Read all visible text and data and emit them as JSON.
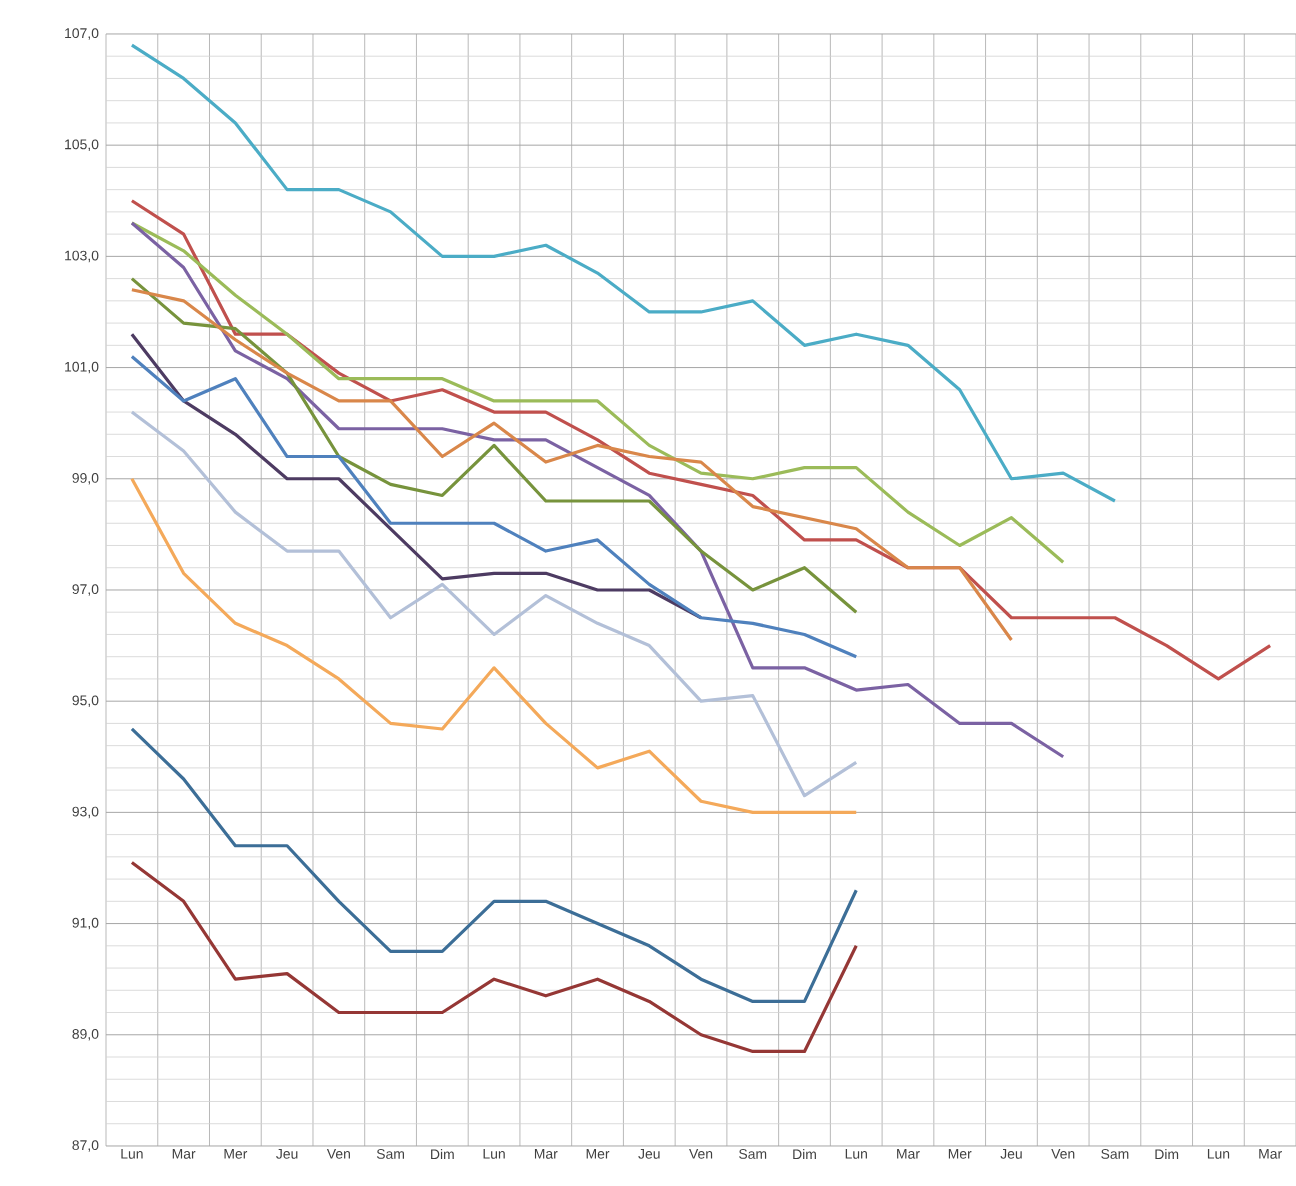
{
  "chart_data": {
    "type": "line",
    "categories": [
      "Lun",
      "Mar",
      "Mer",
      "Jeu",
      "Ven",
      "Sam",
      "Dim",
      "Lun",
      "Mar",
      "Mer",
      "Jeu",
      "Ven",
      "Sam",
      "Dim",
      "Lun",
      "Mar",
      "Mer",
      "Jeu",
      "Ven",
      "Sam",
      "Dim",
      "Lun",
      "Mar"
    ],
    "ylim": [
      87,
      107
    ],
    "yticks": [
      {
        "value": 87,
        "label": "87,0"
      },
      {
        "value": 89,
        "label": "89,0"
      },
      {
        "value": 91,
        "label": "91,0"
      },
      {
        "value": 93,
        "label": "93,0"
      },
      {
        "value": 95,
        "label": "95,0"
      },
      {
        "value": 97,
        "label": "97,0"
      },
      {
        "value": 99,
        "label": "99,0"
      },
      {
        "value": 101,
        "label": "101,0"
      },
      {
        "value": 103,
        "label": "103,0"
      },
      {
        "value": 105,
        "label": "105,0"
      },
      {
        "value": 107,
        "label": "107,0"
      }
    ],
    "grid": true,
    "marker": "none",
    "line_style": "solid",
    "series": [
      {
        "color": "#4bacc6",
        "values": [
          106.8,
          106.2,
          105.4,
          104.2,
          104.2,
          103.8,
          103.0,
          103.0,
          103.2,
          102.7,
          102.0,
          102.0,
          102.2,
          101.4,
          101.6,
          101.4,
          100.6,
          99.0,
          99.1,
          98.6,
          null,
          null,
          null
        ]
      },
      {
        "color": "#c0504d",
        "values": [
          104.0,
          103.4,
          101.6,
          101.6,
          100.9,
          100.4,
          100.6,
          100.2,
          100.2,
          99.7,
          99.1,
          98.9,
          98.7,
          97.9,
          97.9,
          97.4,
          97.4,
          96.5,
          96.5,
          96.5,
          96.0,
          95.4,
          96.0
        ]
      },
      {
        "color": "#9bbb59",
        "values": [
          103.6,
          103.1,
          102.3,
          101.6,
          100.8,
          100.8,
          100.8,
          100.4,
          100.4,
          100.4,
          99.6,
          99.1,
          99.0,
          99.2,
          99.2,
          98.4,
          97.8,
          98.3,
          97.5,
          null,
          null,
          null,
          null
        ]
      },
      {
        "color": "#7b62a3",
        "values": [
          103.6,
          102.8,
          101.3,
          100.8,
          99.9,
          99.9,
          99.9,
          99.7,
          99.7,
          99.2,
          98.7,
          97.7,
          95.6,
          95.6,
          95.2,
          95.3,
          94.6,
          94.6,
          94.0,
          null,
          null,
          null,
          null
        ]
      },
      {
        "color": "#77933c",
        "values": [
          102.6,
          101.8,
          101.7,
          100.9,
          99.4,
          98.9,
          98.7,
          99.6,
          98.6,
          98.6,
          98.6,
          97.7,
          97.0,
          97.4,
          96.6,
          null,
          null,
          null,
          null,
          null,
          null,
          null,
          null
        ]
      },
      {
        "color": "#d9874a",
        "values": [
          102.4,
          102.2,
          101.5,
          100.9,
          100.4,
          100.4,
          99.4,
          100.0,
          99.3,
          99.6,
          99.4,
          99.3,
          98.5,
          98.3,
          98.1,
          97.4,
          97.4,
          96.1,
          null,
          null,
          null,
          null,
          null
        ]
      },
      {
        "color": "#4d3b62",
        "values": [
          101.6,
          100.4,
          99.8,
          99.0,
          99.0,
          98.1,
          97.2,
          97.3,
          97.3,
          97.0,
          97.0,
          96.5,
          null,
          null,
          null,
          null,
          null,
          null,
          null,
          null,
          null,
          null,
          null
        ]
      },
      {
        "color": "#4f81bd",
        "values": [
          101.2,
          100.4,
          100.8,
          99.4,
          99.4,
          98.2,
          98.2,
          98.2,
          97.7,
          97.9,
          97.1,
          96.5,
          96.4,
          96.2,
          95.8,
          null,
          null,
          null,
          null,
          null,
          null,
          null,
          null
        ]
      },
      {
        "color": "#b3c0d8",
        "values": [
          100.2,
          99.5,
          98.4,
          97.7,
          97.7,
          96.5,
          97.1,
          96.2,
          96.9,
          96.4,
          96.0,
          95.0,
          95.1,
          93.3,
          93.9,
          null,
          null,
          null,
          null,
          null,
          null,
          null,
          null
        ]
      },
      {
        "color": "#f4a95a",
        "values": [
          99.0,
          97.3,
          96.4,
          96.0,
          95.4,
          94.6,
          94.5,
          95.6,
          94.6,
          93.8,
          94.1,
          93.2,
          93.0,
          93.0,
          93.0,
          null,
          null,
          null,
          null,
          null,
          null,
          null,
          null
        ]
      },
      {
        "color": "#3c6e97",
        "values": [
          94.5,
          93.6,
          92.4,
          92.4,
          91.4,
          90.5,
          90.5,
          91.4,
          91.4,
          91.0,
          90.6,
          90.0,
          89.6,
          89.6,
          91.6,
          null,
          null,
          null,
          null,
          null,
          null,
          null,
          null
        ]
      },
      {
        "color": "#953735",
        "values": [
          92.1,
          91.4,
          90.0,
          90.1,
          89.4,
          89.4,
          89.4,
          90.0,
          89.7,
          90.0,
          89.6,
          89.0,
          88.7,
          88.7,
          90.6,
          null,
          null,
          null,
          null,
          null,
          null,
          null,
          null
        ]
      }
    ]
  }
}
